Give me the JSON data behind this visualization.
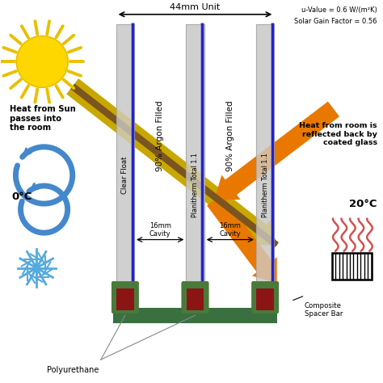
{
  "bg_color": "#ffffff",
  "title_44mm": "44mm Unit",
  "u_value_text": "u-Value = 0.6 W/(m²K)\nSolar Gain Factor = 0.56",
  "glass_color": "#d0d0d0",
  "blue_line_color": "#2222cc",
  "argon_text1": "90% Argon Filled",
  "argon_text2": "90% Argon Filled",
  "label1": "Clear Float",
  "label2": "Planitherm Total 1.1",
  "label3": "Planitherm Total 1.1",
  "polyurethane_text": "Polyurethane",
  "composite_spacer_text": "Composite\nSpacer Bar",
  "heat_sun_text": "Heat from Sun\npasses into\nthe room",
  "heat_room_text": "Heat from room is\nreflected back by\ncoated glass",
  "temp_left": "0°C",
  "temp_right": "20°C",
  "arrow_orange_color": "#E87800",
  "arrow_yellow_color": "#C8A800",
  "arrow_blue_color": "#4488CC",
  "snowflake_color": "#55AADD",
  "heat_wave_color": "#CC3333",
  "green_spacer": "#4a7a3a",
  "red_spacer": "#8B1515",
  "green_bottom": "#3a7040"
}
